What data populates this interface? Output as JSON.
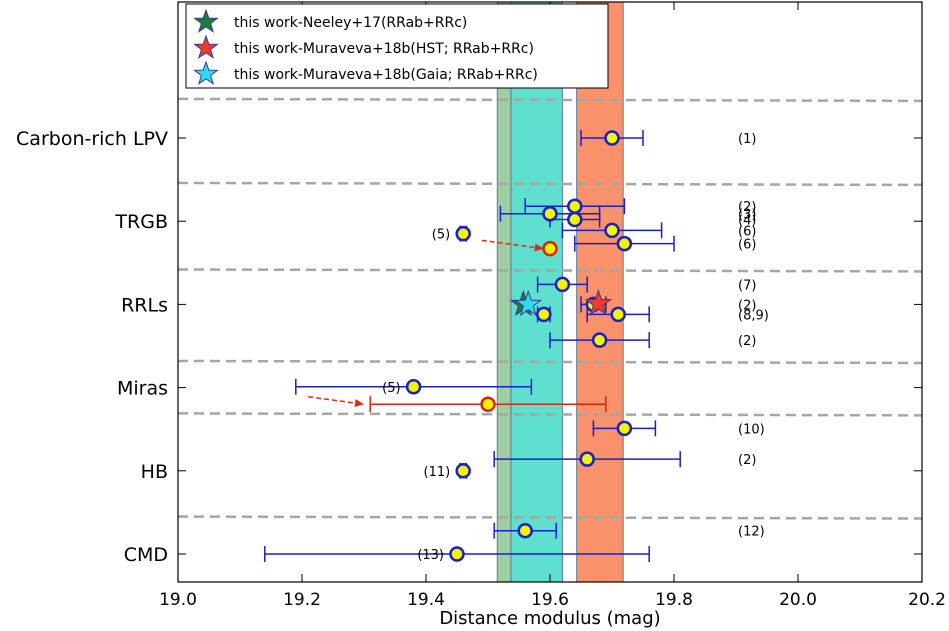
{
  "chart_data": {
    "type": "scatter",
    "xlabel": "Distance modulus (mag)",
    "xlim": [
      19.0,
      20.2
    ],
    "x_ticks": [
      "19.0",
      "19.2",
      "19.4",
      "19.6",
      "19.8",
      "20.0",
      "20.2"
    ],
    "y_categories": [
      "Carbon-rich LPV",
      "TRGB",
      "RRLs",
      "Miras",
      "HB",
      "CMD"
    ],
    "bands": [
      {
        "name": "Neeley+17",
        "xmin": 19.515,
        "xmax": 19.537,
        "color": "#9fcea5"
      },
      {
        "name": "Muraveva+18b(Gaia)",
        "xmin": 19.537,
        "xmax": 19.62,
        "color": "#5fe0ce"
      },
      {
        "name": "Muraveva+18b(HST)",
        "xmin": 19.643,
        "xmax": 19.718,
        "color": "#f9916a"
      }
    ],
    "points": [
      {
        "y": 1.0,
        "x": 19.7,
        "xerr_lo": 0.05,
        "xerr_hi": 0.05,
        "color": "blue",
        "ref": "(1)"
      },
      {
        "y": 1.82,
        "x": 19.64,
        "xerr_lo": 0.08,
        "xerr_hi": 0.08,
        "color": "blue",
        "ref": "(2)"
      },
      {
        "y": 1.91,
        "x": 19.6,
        "xerr_lo": 0.08,
        "xerr_hi": 0.08,
        "color": "blue",
        "ref": "(3)"
      },
      {
        "y": 1.98,
        "x": 19.64,
        "xerr_lo": 0.04,
        "xerr_hi": 0.04,
        "color": "blue",
        "ref": "(4)"
      },
      {
        "y": 2.11,
        "x": 19.7,
        "xerr_lo": 0.08,
        "xerr_hi": 0.08,
        "color": "blue",
        "ref": "(6)"
      },
      {
        "y": 2.27,
        "x": 19.72,
        "xerr_lo": 0.08,
        "xerr_hi": 0.08,
        "color": "blue",
        "ref": "(6)"
      },
      {
        "y": 2.15,
        "x": 19.46,
        "xerr_lo": 0.005,
        "xerr_hi": 0.005,
        "color": "blue",
        "ref": "(5)"
      },
      {
        "y": 2.33,
        "x": 19.6,
        "xerr_lo": 0,
        "xerr_hi": 0,
        "color": "red"
      },
      {
        "y": 2.76,
        "x": 19.62,
        "xerr_lo": 0.04,
        "xerr_hi": 0.04,
        "color": "blue",
        "ref": "(7)"
      },
      {
        "y": 3.0,
        "x": 19.67,
        "xerr_lo": 0.02,
        "xerr_hi": 0.02,
        "color": "blue",
        "ref": "(2)"
      },
      {
        "y": 3.12,
        "x": 19.59,
        "xerr_lo": 0.01,
        "xerr_hi": 0.01,
        "color": "blue"
      },
      {
        "y": 3.12,
        "x": 19.71,
        "xerr_lo": 0.05,
        "xerr_hi": 0.05,
        "color": "blue",
        "ref": "(8,9)"
      },
      {
        "y": 3.43,
        "x": 19.68,
        "xerr_lo": 0.08,
        "xerr_hi": 0.08,
        "color": "blue",
        "ref": "(2)"
      },
      {
        "y": 3.99,
        "x": 19.38,
        "xerr_lo": 0.19,
        "xerr_hi": 0.19,
        "color": "blue",
        "ref": "(5)"
      },
      {
        "y": 4.2,
        "x": 19.5,
        "xerr_lo": 0.19,
        "xerr_hi": 0.19,
        "color": "red"
      },
      {
        "y": 4.49,
        "x": 19.72,
        "xerr_lo": 0.05,
        "xerr_hi": 0.05,
        "color": "blue",
        "ref": "(10)"
      },
      {
        "y": 4.86,
        "x": 19.66,
        "xerr_lo": 0.15,
        "xerr_hi": 0.15,
        "color": "blue",
        "ref": "(2)"
      },
      {
        "y": 5.0,
        "x": 19.46,
        "xerr_lo": 0.005,
        "xerr_hi": 0.005,
        "color": "blue",
        "ref": "(11)"
      },
      {
        "y": 5.72,
        "x": 19.56,
        "xerr_lo": 0.05,
        "xerr_hi": 0.05,
        "color": "blue",
        "ref": "(12)"
      },
      {
        "y": 6.0,
        "x": 19.45,
        "xerr_lo": 0.31,
        "xerr_hi": 0.31,
        "color": "blue",
        "ref": "(13)"
      }
    ],
    "stars": [
      {
        "label": "this work-Neeley+17(RRab+RRc)",
        "x": 19.557,
        "y": 3.0,
        "color": "#1e7a3c"
      },
      {
        "label": "this work-Muraveva+18b(HST; RRab+RRc)",
        "x": 19.678,
        "y": 2.99,
        "color": "#ee3a2a"
      },
      {
        "label": "this work-Muraveva+18b(Gaia; RRab+RRc)",
        "x": 19.565,
        "y": 3.0,
        "color": "#27dcf4"
      }
    ],
    "dashed_separators": [
      0.53,
      1.54,
      2.58,
      3.68,
      4.31,
      5.55
    ],
    "arrows": [
      {
        "from": [
          19.49,
          2.23
        ],
        "to": [
          19.59,
          2.33
        ]
      },
      {
        "from": [
          19.21,
          4.11
        ],
        "to": [
          19.3,
          4.2
        ]
      }
    ],
    "legend": "top-left",
    "grid": false
  }
}
